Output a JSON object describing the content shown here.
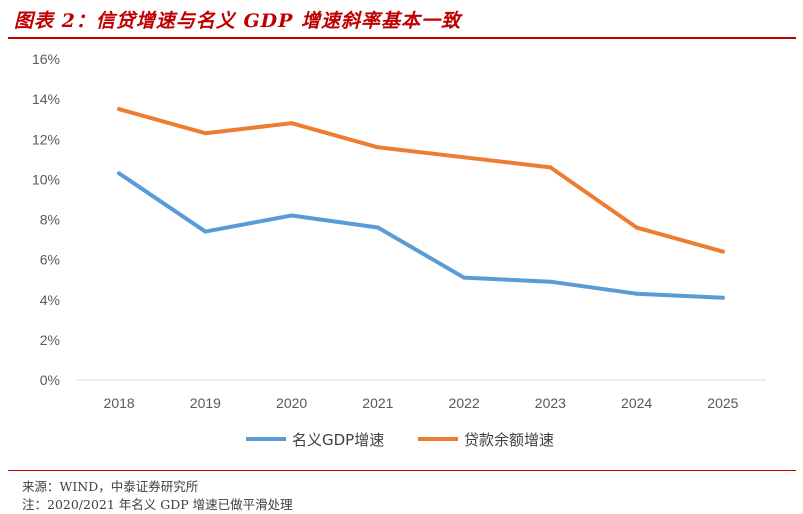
{
  "figure": {
    "title": "图表 2：信贷增速与名义 GDP 增速斜率基本一致",
    "source": "来源：WIND，中泰证券研究所",
    "note": "注：2020/2021 年名义 GDP 增速已做平滑处理"
  },
  "chart_data": {
    "type": "line",
    "title": "",
    "xlabel": "",
    "ylabel": "",
    "x": [
      "2018",
      "2019",
      "2020",
      "2021",
      "2022",
      "2023",
      "2024",
      "2025"
    ],
    "ylim": [
      0,
      16
    ],
    "yticks": [
      "0%",
      "2%",
      "4%",
      "6%",
      "8%",
      "10%",
      "12%",
      "14%",
      "16%"
    ],
    "grid": false,
    "legend_position": "bottom",
    "series": [
      {
        "name": "名义GDP增速",
        "color": "#5b9bd5",
        "values": [
          10.3,
          7.4,
          8.2,
          7.6,
          5.1,
          4.9,
          4.3,
          4.1
        ]
      },
      {
        "name": "贷款余额增速",
        "color": "#ed7d31",
        "values": [
          13.5,
          12.3,
          12.8,
          11.6,
          11.1,
          10.6,
          7.6,
          6.4
        ]
      }
    ]
  }
}
